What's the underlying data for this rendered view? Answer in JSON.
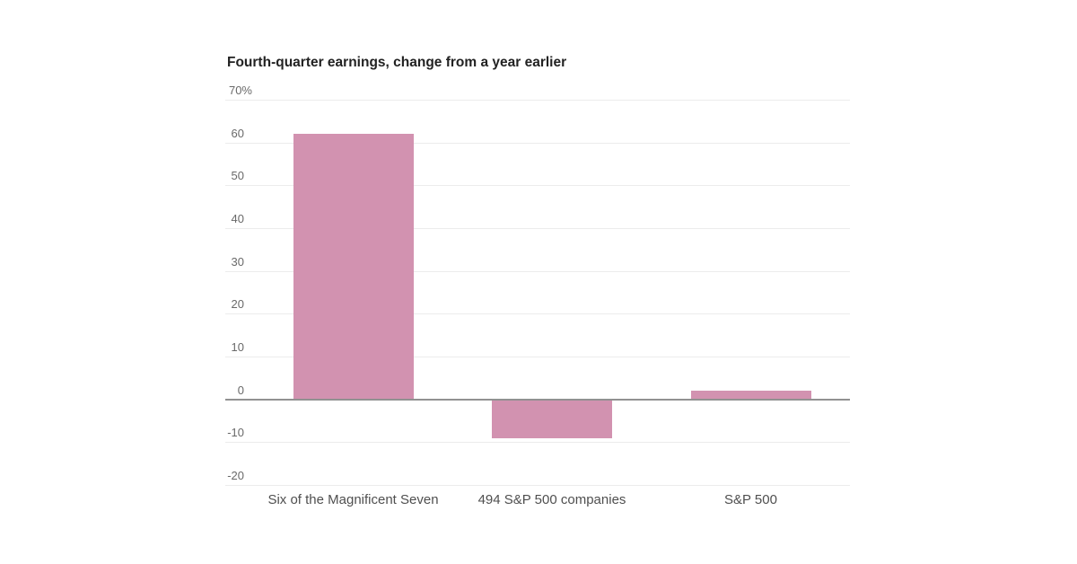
{
  "chart_data": {
    "type": "bar",
    "title": "Fourth-quarter earnings, change from a year earlier",
    "categories": [
      "Six of the Magnificent Seven",
      "494 S&P 500 companies",
      "S&P 500"
    ],
    "values": [
      62,
      -9,
      2
    ],
    "unit": "%",
    "xlabel": "",
    "ylabel": "",
    "ylim": [
      -20,
      70
    ],
    "ytick_step": 10,
    "yticks": [
      {
        "value": 70,
        "label": "70%"
      },
      {
        "value": 60,
        "label": "60"
      },
      {
        "value": 50,
        "label": "50"
      },
      {
        "value": 40,
        "label": "40"
      },
      {
        "value": 30,
        "label": "30"
      },
      {
        "value": 20,
        "label": "20"
      },
      {
        "value": 10,
        "label": "10"
      },
      {
        "value": 0,
        "label": "0"
      },
      {
        "value": -10,
        "label": "-10"
      },
      {
        "value": -20,
        "label": "-20"
      }
    ],
    "grid": true,
    "legend": "none",
    "bar_color": "#d292b0",
    "gridline_color": "#ececec",
    "zero_line_color": "#919191",
    "title_color": "#222222",
    "ytick_color": "#696969",
    "xtick_color": "#4f4f4f",
    "background": "#ffffff"
  }
}
